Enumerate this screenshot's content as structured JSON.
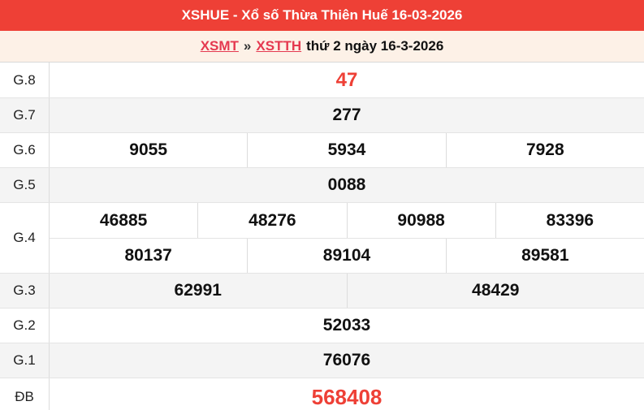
{
  "header": {
    "title": "XSHUE - Xổ số Thừa Thiên Huế 16-03-2026"
  },
  "breadcrumb": {
    "link_region": "XSMT",
    "separator": "»",
    "link_province": "XSTTH",
    "date_text": "thứ 2 ngày 16-3-2026"
  },
  "results": {
    "rows": [
      {
        "label": "G.8",
        "cells": [
          "47"
        ]
      },
      {
        "label": "G.7",
        "cells": [
          "277"
        ]
      },
      {
        "label": "G.6",
        "cells": [
          "9055",
          "5934",
          "7928"
        ]
      },
      {
        "label": "G.5",
        "cells": [
          "0088"
        ]
      },
      {
        "label": "G.4",
        "cells": [
          "46885",
          "48276",
          "90988",
          "83396"
        ],
        "cells2": [
          "80137",
          "89104",
          "89581"
        ]
      },
      {
        "label": "G.3",
        "cells": [
          "62991",
          "48429"
        ]
      },
      {
        "label": "G.2",
        "cells": [
          "52033"
        ]
      },
      {
        "label": "G.1",
        "cells": [
          "76076"
        ]
      },
      {
        "label": "ĐB",
        "cells": [
          "568408"
        ]
      }
    ]
  },
  "colors": {
    "accent_red": "#ee4036",
    "link_red": "#e53950",
    "highlight_number_red": "#ee4036",
    "subtitle_bg": "#fdf1e7",
    "row_alt_bg": "#f4f4f4",
    "border": "#dcdcdc"
  }
}
